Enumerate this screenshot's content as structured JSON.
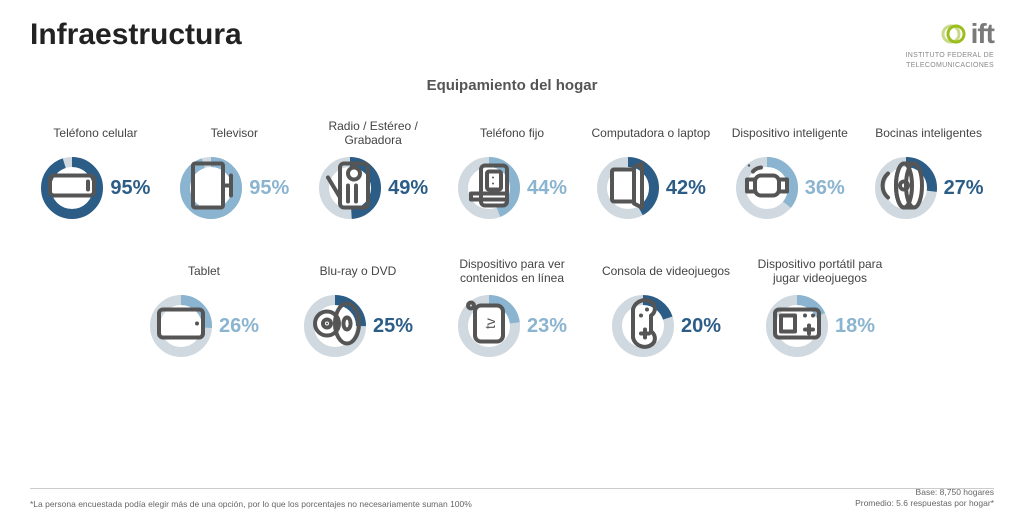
{
  "title": "Infraestructura",
  "subtitle": "Equipamiento del hogar",
  "logo": {
    "brand": "ift",
    "subline1": "INSTITUTO FEDERAL DE",
    "subline2": "TELECOMUNICACIONES",
    "accent_color": "#9bbe1d",
    "text_color": "#7a7a7a"
  },
  "chart": {
    "type": "donut-grid",
    "donut_radius": 26,
    "donut_stroke_width": 10,
    "track_color": "#cfd9df",
    "label_fontsize": 12,
    "pct_fontsize": 20,
    "icon_stroke": "#555555",
    "background_color": "#ffffff"
  },
  "items": [
    {
      "label": "Teléfono celular",
      "value": 95,
      "arc_color": "#2c5d87",
      "pct_color": "#2c5d87",
      "icon": "phone"
    },
    {
      "label": "Televisor",
      "value": 95,
      "arc_color": "#8ab4cf",
      "pct_color": "#8ab4cf",
      "icon": "tv"
    },
    {
      "label": "Radio / Estéreo / Grabadora",
      "value": 49,
      "arc_color": "#2c5d87",
      "pct_color": "#2c5d87",
      "icon": "radio"
    },
    {
      "label": "Teléfono fijo",
      "value": 44,
      "arc_color": "#8ab4cf",
      "pct_color": "#8ab4cf",
      "icon": "landline"
    },
    {
      "label": "Computadora o laptop",
      "value": 42,
      "arc_color": "#2c5d87",
      "pct_color": "#2c5d87",
      "icon": "laptop"
    },
    {
      "label": "Dispositivo inteligente",
      "value": 36,
      "arc_color": "#8ab4cf",
      "pct_color": "#8ab4cf",
      "icon": "smartwatch"
    },
    {
      "label": "Bocinas inteligentes",
      "value": 27,
      "arc_color": "#2c5d87",
      "pct_color": "#2c5d87",
      "icon": "speaker"
    },
    {
      "label": "Tablet",
      "value": 26,
      "arc_color": "#8ab4cf",
      "pct_color": "#8ab4cf",
      "icon": "tablet"
    },
    {
      "label": "Blu-ray o DVD",
      "value": 25,
      "arc_color": "#2c5d87",
      "pct_color": "#2c5d87",
      "icon": "disc"
    },
    {
      "label": "Dispositivo para ver contenidos en línea",
      "value": 23,
      "arc_color": "#8ab4cf",
      "pct_color": "#8ab4cf",
      "icon": "streambox"
    },
    {
      "label": "Consola de videojuegos",
      "value": 20,
      "arc_color": "#2c5d87",
      "pct_color": "#2c5d87",
      "icon": "gamepad"
    },
    {
      "label": "Dispositivo portátil para jugar videojuegos",
      "value": 18,
      "arc_color": "#8ab4cf",
      "pct_color": "#8ab4cf",
      "icon": "handheld"
    }
  ],
  "footnote": "*La persona encuestada podía elegir más de una opción, por lo que los porcentajes no necesariamente suman 100%",
  "base_line1": "Base: 8,750 hogares",
  "base_line2": "Promedio: 5.6 respuestas por hogar*"
}
